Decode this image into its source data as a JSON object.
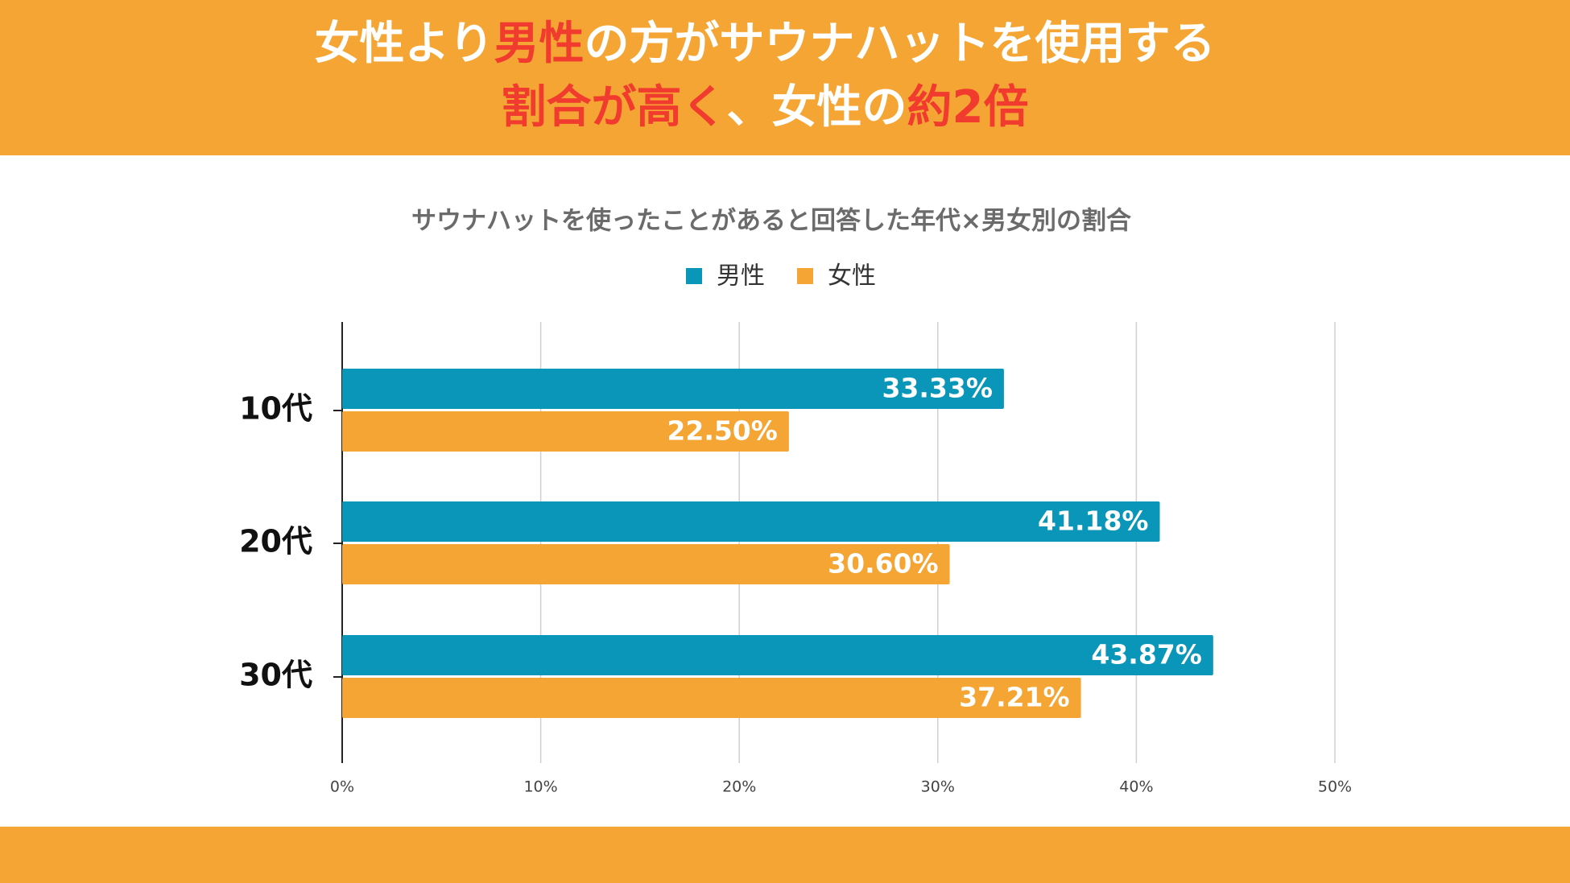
{
  "header": {
    "title_lines": [
      [
        {
          "text": "女性より",
          "color": "#ffffff"
        },
        {
          "text": "男性",
          "color": "#f23b2f"
        },
        {
          "text": "の方がサウナハットを使用する",
          "color": "#ffffff"
        }
      ],
      [
        {
          "text": "割合が高く",
          "color": "#f23b2f"
        },
        {
          "text": "、女性の",
          "color": "#ffffff"
        },
        {
          "text": "約2倍",
          "color": "#f23b2f"
        }
      ]
    ]
  },
  "chart_data": {
    "type": "bar",
    "orientation": "horizontal",
    "title": "サウナハットを使ったことがあると回答した年代×男女別の割合",
    "categories": [
      "10代",
      "20代",
      "30代"
    ],
    "series": [
      {
        "name": "男性",
        "color": "#0a96b8",
        "values": [
          33.33,
          41.18,
          43.87
        ],
        "value_labels": [
          "33.33%",
          "41.18%",
          "43.87%"
        ]
      },
      {
        "name": "女性",
        "color": "#f4a533",
        "values": [
          22.5,
          30.6,
          37.21
        ],
        "value_labels": [
          "22.50%",
          "30.60%",
          "37.21%"
        ]
      }
    ],
    "xlim": [
      0,
      50
    ],
    "xticks": [
      {
        "value": 0,
        "label": "0%"
      },
      {
        "value": 10,
        "label": "10%"
      },
      {
        "value": 20,
        "label": "20%"
      },
      {
        "value": 30,
        "label": "30%"
      },
      {
        "value": 40,
        "label": "40%"
      },
      {
        "value": 50,
        "label": "50%"
      }
    ],
    "grid": true,
    "legend": "top"
  }
}
